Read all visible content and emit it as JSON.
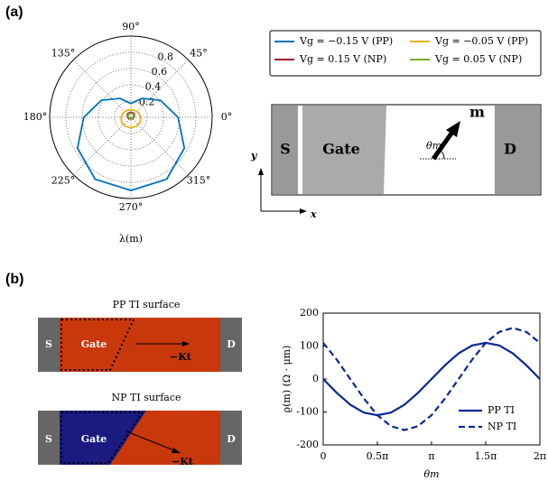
{
  "panel_labels": [
    "(a)",
    "(b)"
  ],
  "device": {
    "source": "S",
    "gate": "Gate",
    "drain": "D",
    "m": "m",
    "theta": "θm",
    "x": "x",
    "y": "y"
  },
  "surfaces": [
    {
      "title": "PP TI surface",
      "source": "S",
      "gate": "Gate",
      "drain": "D",
      "k": "−Kt"
    },
    {
      "title": "NP TI surface",
      "source": "S",
      "gate": "Gate",
      "drain": "D",
      "k": "−Kt"
    }
  ],
  "chart_data": [
    {
      "type": "polar",
      "xlabel": "λ(m)",
      "x": [
        0,
        30,
        60,
        90,
        120,
        150,
        180,
        210,
        240,
        270,
        300,
        330
      ],
      "rlim": [
        0,
        1
      ],
      "rticks": [
        0.2,
        0.4,
        0.6,
        0.8
      ],
      "angle_ticks": [
        {
          "value": 0,
          "label": "0°"
        },
        {
          "value": 45,
          "label": "45°"
        },
        {
          "value": 90,
          "label": "90°"
        },
        {
          "value": 135,
          "label": "135°"
        },
        {
          "value": 180,
          "label": "180°"
        },
        {
          "value": 225,
          "label": "225°"
        },
        {
          "value": 270,
          "label": "270°"
        },
        {
          "value": 315,
          "label": "315°"
        }
      ],
      "grid": true,
      "series": [
        {
          "name": "Vg = −0.15 V (PP)",
          "color": "#0072bd",
          "values": [
            0.58,
            0.42,
            0.27,
            0.17,
            0.27,
            0.42,
            0.58,
            0.76,
            0.88,
            0.9,
            0.88,
            0.76
          ]
        },
        {
          "name": "Vg = −0.05 V (PP)",
          "color": "#edb120",
          "values": [
            0.12,
            0.11,
            0.1,
            0.09,
            0.1,
            0.11,
            0.12,
            0.13,
            0.13,
            0.13,
            0.13,
            0.13
          ]
        },
        {
          "name": "Vg = 0.15 V (NP)",
          "color": "#a2142f",
          "values": [
            0.04,
            0.05,
            0.06,
            0.06,
            0.06,
            0.05,
            0.04,
            0.03,
            0.02,
            0.02,
            0.02,
            0.03
          ]
        },
        {
          "name": "Vg = 0.05 V (NP)",
          "color": "#77ac30",
          "values": [
            0.03,
            0.04,
            0.05,
            0.05,
            0.05,
            0.04,
            0.03,
            0.02,
            0.02,
            0.01,
            0.02,
            0.02
          ]
        }
      ]
    },
    {
      "type": "line",
      "xlabel": "θm",
      "ylabel": "ϱ(m) (Ω · μm)",
      "x": [
        0,
        0.3927,
        0.7854,
        1.1781,
        1.5708,
        1.9635,
        2.3562,
        2.7489,
        3.1416,
        3.5343,
        3.927,
        4.3197,
        4.7124,
        5.1051,
        5.4978,
        5.8905,
        6.2832
      ],
      "xlim": [
        0,
        6.2832
      ],
      "xticks": [
        {
          "value": 0,
          "label": "0"
        },
        {
          "value": 1.5708,
          "label": "0.5π"
        },
        {
          "value": 3.1416,
          "label": "π"
        },
        {
          "value": 4.7124,
          "label": "1.5π"
        },
        {
          "value": 6.2832,
          "label": "2π"
        }
      ],
      "ylim": [
        -200,
        200
      ],
      "yticks": [
        -200,
        -100,
        0,
        100,
        200
      ],
      "legend": "lower-right",
      "series": [
        {
          "name": "PP TI",
          "color": "#0a2896",
          "dash": "solid",
          "values": [
            0,
            -42,
            -78,
            -102,
            -110,
            -102,
            -78,
            -42,
            0,
            42,
            78,
            102,
            110,
            102,
            78,
            42,
            0
          ]
        },
        {
          "name": "NP TI",
          "color": "#0a2896",
          "dash": "dashed",
          "values": [
            110,
            59,
            0,
            -59,
            -110,
            -143,
            -155,
            -143,
            -110,
            -59,
            0,
            59,
            110,
            143,
            155,
            143,
            110
          ]
        }
      ]
    }
  ]
}
